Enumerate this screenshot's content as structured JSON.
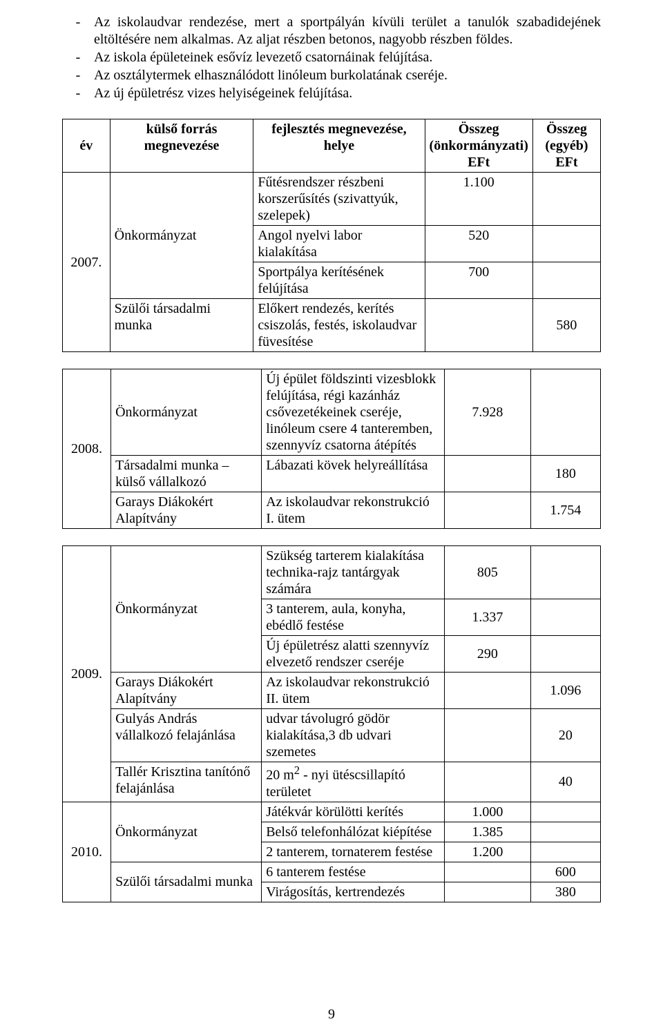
{
  "bullets": [
    "Az iskolaudvar rendezése, mert a sportpályán kívüli terület a tanulók szabadidejének eltöltésére nem alkalmas. Az aljat részben betonos, nagyobb részben földes.",
    "Az iskola épületeinek esővíz levezető csatornáinak felújítása.",
    "Az osztálytermek elhasználódott linóleum burkolatának cseréje.",
    "Az új épületrész vizes helyiségeinek felújítása."
  ],
  "headers": {
    "year": "év",
    "source": "külső forrás megnevezése",
    "dev": "fejlesztés megnevezése, helye",
    "sum1": "Összeg (önkormányzati) EFt",
    "sum2": "Összeg (egyéb) EFt"
  },
  "t1": {
    "year": "2007.",
    "src1": "Önkormányzat",
    "src2": "Szülői társadalmi munka",
    "r1": {
      "dev": "Fűtésrendszer részbeni korszerűsítés (szivattyúk, szelepek)",
      "s1": "1.100",
      "s2": ""
    },
    "r2": {
      "dev": "Angol nyelvi labor kialakítása",
      "s1": "520",
      "s2": ""
    },
    "r3": {
      "dev": "Sportpálya kerítésének felújítása",
      "s1": "700",
      "s2": ""
    },
    "r4": {
      "dev": "Előkert rendezés, kerítés csiszolás, festés, iskolaudvar füvesítése",
      "s1": "",
      "s2": "580"
    }
  },
  "t2": {
    "year": "2008.",
    "src1": "Önkormányzat",
    "src2": "Társadalmi munka – külső vállalkozó",
    "src3": "Garays Diákokért Alapítvány",
    "r1": {
      "dev": "Új épület földszinti vizesblokk felújítása, régi kazánház csővezetékeinek cseréje, linóleum csere 4 tanteremben, szennyvíz csatorna átépítés",
      "s1": "7.928",
      "s2": ""
    },
    "r2": {
      "dev": "Lábazati kövek helyreállítása",
      "s1": "",
      "s2": "180"
    },
    "r3": {
      "dev": "Az iskolaudvar rekonstrukció I. ütem",
      "s1": "",
      "s2": "1.754"
    }
  },
  "t3": {
    "y1": "2009.",
    "y2": "2010.",
    "src1": "Önkormányzat",
    "src2": "Garays Diákokért Alapítvány",
    "src3": "Gulyás András vállalkozó felajánlása",
    "src4": "Tallér Krisztina tanítónő felajánlása",
    "src5": "Önkormányzat",
    "src6": "Szülői társadalmi munka",
    "r1": {
      "dev": "Szükség tarterem kialakítása technika-rajz tantárgyak számára",
      "s1": "805",
      "s2": ""
    },
    "r2": {
      "dev": "3 tanterem, aula, konyha, ebédlő festése",
      "s1": "1.337",
      "s2": ""
    },
    "r3": {
      "dev": "Új épületrész alatti szennyvíz elvezető rendszer cseréje",
      "s1": "290",
      "s2": ""
    },
    "r4": {
      "dev": "Az iskolaudvar rekonstrukció II. ütem",
      "s1": "",
      "s2": "1.096"
    },
    "r5": {
      "dev": "udvar távolugró gödör kialakítása,3 db udvari szemetes",
      "s1": "",
      "s2": "20"
    },
    "r6": {
      "dev_html": "20 m<sup>2</sup> - nyi ütéscsillapító területet",
      "s1": "",
      "s2": "40"
    },
    "r7": {
      "dev": "Játékvár körülötti kerítés",
      "s1": "1.000",
      "s2": ""
    },
    "r8": {
      "dev": "Belső telefonhálózat kiépítése",
      "s1": "1.385",
      "s2": ""
    },
    "r9": {
      "dev": "2 tanterem, tornaterem festése",
      "s1": "1.200",
      "s2": ""
    },
    "r10": {
      "dev": "6 tanterem festése",
      "s1": "",
      "s2": "600"
    },
    "r11": {
      "dev": "Virágosítás, kertrendezés",
      "s1": "",
      "s2": "380"
    }
  },
  "pageNumber": "9"
}
